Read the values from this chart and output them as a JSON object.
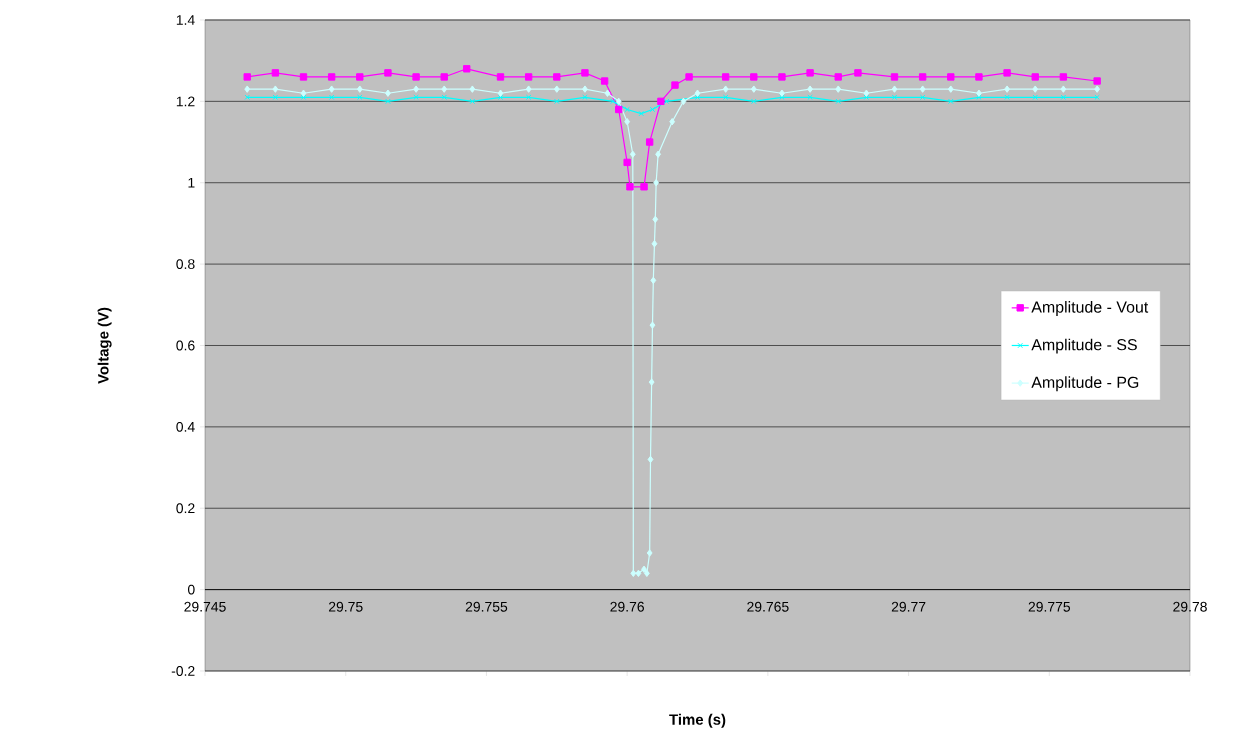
{
  "chart_data": {
    "type": "line",
    "xlabel": "Time (s)",
    "ylabel": "Voltage (V)",
    "xlim": [
      29.745,
      29.78
    ],
    "ylim": [
      -0.2,
      1.4
    ],
    "xticks": [
      29.745,
      29.75,
      29.755,
      29.76,
      29.765,
      29.77,
      29.775,
      29.78
    ],
    "yticks": [
      -0.2,
      0,
      0.2,
      0.4,
      0.6,
      0.8,
      1,
      1.2,
      1.4
    ],
    "grid": "y",
    "legend": "right",
    "series": [
      {
        "name": "Amplitude - Vout",
        "color": "#ff00ff",
        "marker": "square",
        "x": [
          29.7465,
          29.7475,
          29.7485,
          29.7495,
          29.7505,
          29.7515,
          29.7525,
          29.7535,
          29.7543,
          29.7555,
          29.7565,
          29.7575,
          29.7585,
          29.7592,
          29.7597,
          29.76,
          29.7601,
          29.7606,
          29.7608,
          29.7612,
          29.7617,
          29.7622,
          29.7635,
          29.7645,
          29.7655,
          29.7665,
          29.7675,
          29.7682,
          29.7695,
          29.7705,
          29.7715,
          29.7725,
          29.7735,
          29.7745,
          29.7755,
          29.7767
        ],
        "values": [
          1.26,
          1.27,
          1.26,
          1.26,
          1.26,
          1.27,
          1.26,
          1.26,
          1.28,
          1.26,
          1.26,
          1.26,
          1.27,
          1.25,
          1.18,
          1.05,
          0.99,
          0.99,
          1.1,
          1.2,
          1.24,
          1.26,
          1.26,
          1.26,
          1.26,
          1.27,
          1.26,
          1.27,
          1.26,
          1.26,
          1.26,
          1.26,
          1.27,
          1.26,
          1.26,
          1.25
        ]
      },
      {
        "name": "Amplitude - SS",
        "color": "#00ffff",
        "marker": "cross",
        "x": [
          29.7465,
          29.7475,
          29.7485,
          29.7495,
          29.7505,
          29.7515,
          29.7525,
          29.7535,
          29.7545,
          29.7555,
          29.7565,
          29.7575,
          29.7585,
          29.7595,
          29.76,
          29.7605,
          29.7609,
          29.7614,
          29.7625,
          29.7635,
          29.7645,
          29.7655,
          29.7665,
          29.7675,
          29.7685,
          29.7695,
          29.7705,
          29.7715,
          29.7725,
          29.7735,
          29.7745,
          29.7755,
          29.7767
        ],
        "values": [
          1.21,
          1.21,
          1.21,
          1.21,
          1.21,
          1.2,
          1.21,
          1.21,
          1.2,
          1.21,
          1.21,
          1.2,
          1.21,
          1.2,
          1.18,
          1.17,
          1.18,
          1.2,
          1.21,
          1.21,
          1.2,
          1.21,
          1.21,
          1.2,
          1.21,
          1.21,
          1.21,
          1.2,
          1.21,
          1.21,
          1.21,
          1.21,
          1.21
        ]
      },
      {
        "name": "Amplitude - PG",
        "color": "#ccffff",
        "marker": "diamond",
        "x": [
          29.7465,
          29.7475,
          29.7485,
          29.7495,
          29.7505,
          29.7515,
          29.7525,
          29.7535,
          29.7545,
          29.7555,
          29.7565,
          29.7575,
          29.7585,
          29.7593,
          29.7597,
          29.76,
          29.7602,
          29.76022,
          29.7604,
          29.7606,
          29.7607,
          29.7608,
          29.76083,
          29.76087,
          29.7609,
          29.76093,
          29.76097,
          29.761,
          29.76103,
          29.7611,
          29.7616,
          29.762,
          29.7625,
          29.7635,
          29.7645,
          29.7655,
          29.7665,
          29.7675,
          29.7685,
          29.7695,
          29.7705,
          29.7715,
          29.7725,
          29.7735,
          29.7745,
          29.7755,
          29.7767
        ],
        "values": [
          1.23,
          1.23,
          1.22,
          1.23,
          1.23,
          1.22,
          1.23,
          1.23,
          1.23,
          1.22,
          1.23,
          1.23,
          1.23,
          1.22,
          1.2,
          1.15,
          1.07,
          0.04,
          0.04,
          0.05,
          0.04,
          0.09,
          0.32,
          0.51,
          0.65,
          0.76,
          0.85,
          0.91,
          1,
          1.07,
          1.15,
          1.2,
          1.22,
          1.23,
          1.23,
          1.22,
          1.23,
          1.23,
          1.22,
          1.23,
          1.23,
          1.23,
          1.22,
          1.23,
          1.23,
          1.23,
          1.23
        ]
      }
    ]
  }
}
